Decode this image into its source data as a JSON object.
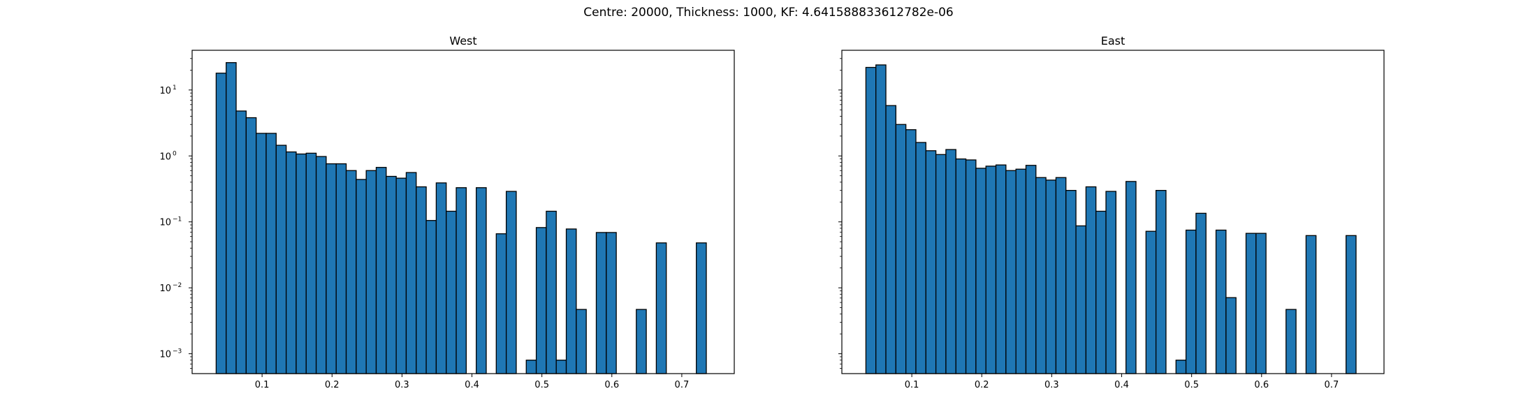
{
  "figure": {
    "suptitle": "Centre: 20000, Thickness: 1000, KF: 4.641588833612782e-06"
  },
  "chart_data": [
    {
      "type": "bar",
      "title": "West",
      "xlabel": "",
      "ylabel": "",
      "y_scale": "log",
      "xlim": [
        0.0,
        0.775
      ],
      "ylim": [
        0.0005,
        40
      ],
      "x_ticks": [
        0.1,
        0.2,
        0.3,
        0.4,
        0.5,
        0.6,
        0.7
      ],
      "x_tick_labels": [
        "0.1",
        "0.2",
        "0.3",
        "0.4",
        "0.5",
        "0.6",
        "0.7"
      ],
      "y_ticks": [
        0.001,
        0.01,
        0.1,
        1,
        10
      ],
      "y_tick_labels": [
        "10",
        "10",
        "10",
        "10",
        "10"
      ],
      "y_tick_exponents": [
        "−3",
        "−2",
        "−1",
        "0",
        "1"
      ],
      "bar_color": "#1f77b4",
      "edge_color": "#000000",
      "bin_width": 0.0143,
      "bins": [
        {
          "x": 0.0415,
          "y": 18
        },
        {
          "x": 0.0558,
          "y": 26
        },
        {
          "x": 0.0701,
          "y": 4.8
        },
        {
          "x": 0.0844,
          "y": 3.8
        },
        {
          "x": 0.0987,
          "y": 2.2
        },
        {
          "x": 0.113,
          "y": 2.2
        },
        {
          "x": 0.1273,
          "y": 1.45
        },
        {
          "x": 0.1416,
          "y": 1.15
        },
        {
          "x": 0.1559,
          "y": 1.07
        },
        {
          "x": 0.1702,
          "y": 1.1
        },
        {
          "x": 0.1845,
          "y": 0.98
        },
        {
          "x": 0.1988,
          "y": 0.76
        },
        {
          "x": 0.2131,
          "y": 0.76
        },
        {
          "x": 0.2274,
          "y": 0.6
        },
        {
          "x": 0.2417,
          "y": 0.44
        },
        {
          "x": 0.256,
          "y": 0.6
        },
        {
          "x": 0.2703,
          "y": 0.67
        },
        {
          "x": 0.2846,
          "y": 0.49
        },
        {
          "x": 0.2989,
          "y": 0.46
        },
        {
          "x": 0.3132,
          "y": 0.56
        },
        {
          "x": 0.3275,
          "y": 0.34
        },
        {
          "x": 0.3418,
          "y": 0.105
        },
        {
          "x": 0.3561,
          "y": 0.39
        },
        {
          "x": 0.3704,
          "y": 0.145
        },
        {
          "x": 0.3847,
          "y": 0.33
        },
        {
          "x": 0.4133,
          "y": 0.33
        },
        {
          "x": 0.4419,
          "y": 0.066
        },
        {
          "x": 0.4562,
          "y": 0.29
        },
        {
          "x": 0.4848,
          "y": 0.0008
        },
        {
          "x": 0.4991,
          "y": 0.082
        },
        {
          "x": 0.5134,
          "y": 0.145
        },
        {
          "x": 0.5277,
          "y": 0.0008
        },
        {
          "x": 0.542,
          "y": 0.078
        },
        {
          "x": 0.5563,
          "y": 0.0047
        },
        {
          "x": 0.5849,
          "y": 0.069
        },
        {
          "x": 0.5992,
          "y": 0.069
        },
        {
          "x": 0.6421,
          "y": 0.0047
        },
        {
          "x": 0.6707,
          "y": 0.048
        },
        {
          "x": 0.7279,
          "y": 0.048
        }
      ]
    },
    {
      "type": "bar",
      "title": "East",
      "xlabel": "",
      "ylabel": "",
      "y_scale": "log",
      "xlim": [
        0.0,
        0.775
      ],
      "ylim": [
        0.0005,
        40
      ],
      "x_ticks": [
        0.1,
        0.2,
        0.3,
        0.4,
        0.5,
        0.6,
        0.7
      ],
      "x_tick_labels": [
        "0.1",
        "0.2",
        "0.3",
        "0.4",
        "0.5",
        "0.6",
        "0.7"
      ],
      "y_ticks": [
        0.001,
        0.01,
        0.1,
        1,
        10
      ],
      "y_tick_labels": [],
      "y_tick_exponents": [],
      "bar_color": "#1f77b4",
      "edge_color": "#000000",
      "bin_width": 0.0143,
      "bins": [
        {
          "x": 0.0415,
          "y": 22
        },
        {
          "x": 0.0558,
          "y": 24
        },
        {
          "x": 0.0701,
          "y": 5.8
        },
        {
          "x": 0.0844,
          "y": 3.0
        },
        {
          "x": 0.0987,
          "y": 2.5
        },
        {
          "x": 0.113,
          "y": 1.6
        },
        {
          "x": 0.1273,
          "y": 1.2
        },
        {
          "x": 0.1416,
          "y": 1.05
        },
        {
          "x": 0.1559,
          "y": 1.25
        },
        {
          "x": 0.1702,
          "y": 0.9
        },
        {
          "x": 0.1845,
          "y": 0.87
        },
        {
          "x": 0.1988,
          "y": 0.65
        },
        {
          "x": 0.2131,
          "y": 0.7
        },
        {
          "x": 0.2274,
          "y": 0.73
        },
        {
          "x": 0.2417,
          "y": 0.6
        },
        {
          "x": 0.256,
          "y": 0.63
        },
        {
          "x": 0.2703,
          "y": 0.72
        },
        {
          "x": 0.2846,
          "y": 0.47
        },
        {
          "x": 0.2989,
          "y": 0.43
        },
        {
          "x": 0.3132,
          "y": 0.47
        },
        {
          "x": 0.3275,
          "y": 0.3
        },
        {
          "x": 0.3418,
          "y": 0.087
        },
        {
          "x": 0.3561,
          "y": 0.34
        },
        {
          "x": 0.3704,
          "y": 0.145
        },
        {
          "x": 0.3847,
          "y": 0.29
        },
        {
          "x": 0.4133,
          "y": 0.41
        },
        {
          "x": 0.4419,
          "y": 0.072
        },
        {
          "x": 0.4562,
          "y": 0.3
        },
        {
          "x": 0.4848,
          "y": 0.0008
        },
        {
          "x": 0.4991,
          "y": 0.075
        },
        {
          "x": 0.5134,
          "y": 0.135
        },
        {
          "x": 0.542,
          "y": 0.075
        },
        {
          "x": 0.5563,
          "y": 0.0071
        },
        {
          "x": 0.5849,
          "y": 0.067
        },
        {
          "x": 0.5992,
          "y": 0.067
        },
        {
          "x": 0.6421,
          "y": 0.0047
        },
        {
          "x": 0.6707,
          "y": 0.062
        },
        {
          "x": 0.7279,
          "y": 0.062
        }
      ]
    }
  ]
}
